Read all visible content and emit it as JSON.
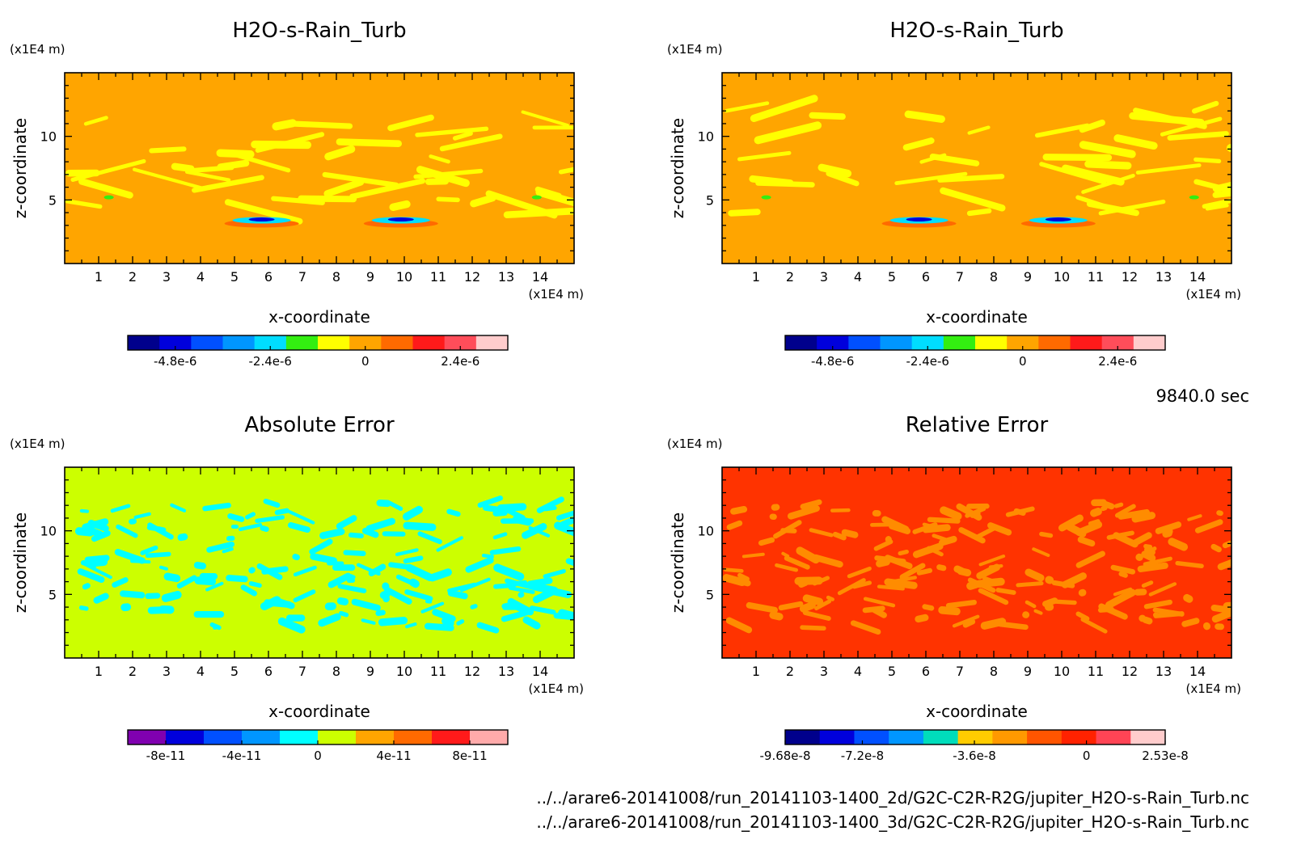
{
  "time_label": "9840.0 sec",
  "files": [
    "../../arare6-20141008/run_20141103-1400_2d/G2C-C2R-R2G/jupiter_H2O-s-Rain_Turb.nc",
    "../../arare6-20141008/run_20141103-1400_3d/G2C-C2R-R2G/jupiter_H2O-s-Rain_Turb.nc"
  ],
  "chart_data": [
    {
      "type": "heatmap",
      "title": "H2O-s-Rain_Turb",
      "xlabel": "x-coordinate",
      "ylabel": "z-coordinate",
      "x_unit": "(x1E4 m)",
      "y_unit": "(x1E4 m)",
      "xlim": [
        0,
        15
      ],
      "ylim": [
        0,
        15
      ],
      "x_ticks": [
        "1",
        "2",
        "3",
        "4",
        "5",
        "6",
        "7",
        "8",
        "9",
        "10",
        "11",
        "12",
        "13",
        "14"
      ],
      "y_ticks": [
        "5",
        "10"
      ],
      "background": "#ffa500",
      "pattern": "#ffff00",
      "pattern_kind": "bands",
      "colorbar": {
        "colors": [
          "#00008c",
          "#0000dc",
          "#0050ff",
          "#0096ff",
          "#00ddff",
          "#33ee11",
          "#ffff00",
          "#ffa500",
          "#ff6a00",
          "#ff1a1a",
          "#ff4d5a",
          "#ffcccc"
        ],
        "tick_labels": [
          "-4.8e-6",
          "-2.4e-6",
          "0",
          "2.4e-6"
        ],
        "tick_values": [
          -4.8e-06,
          -2.4e-06,
          0,
          2.4e-06
        ],
        "range": [
          -6e-06,
          3.6e-06
        ]
      }
    },
    {
      "type": "heatmap",
      "title": "H2O-s-Rain_Turb",
      "xlabel": "x-coordinate",
      "ylabel": "z-coordinate",
      "x_unit": "(x1E4 m)",
      "y_unit": "(x1E4 m)",
      "xlim": [
        0,
        15
      ],
      "ylim": [
        0,
        15
      ],
      "x_ticks": [
        "1",
        "2",
        "3",
        "4",
        "5",
        "6",
        "7",
        "8",
        "9",
        "10",
        "11",
        "12",
        "13",
        "14"
      ],
      "y_ticks": [
        "5",
        "10"
      ],
      "background": "#ffa500",
      "pattern": "#ffff00",
      "pattern_kind": "bands",
      "colorbar": {
        "colors": [
          "#00008c",
          "#0000dc",
          "#0050ff",
          "#0096ff",
          "#00ddff",
          "#33ee11",
          "#ffff00",
          "#ffa500",
          "#ff6a00",
          "#ff1a1a",
          "#ff4d5a",
          "#ffcccc"
        ],
        "tick_labels": [
          "-4.8e-6",
          "-2.4e-6",
          "0",
          "2.4e-6"
        ],
        "tick_values": [
          -4.8e-06,
          -2.4e-06,
          0,
          2.4e-06
        ],
        "range": [
          -6e-06,
          3.6e-06
        ]
      }
    },
    {
      "type": "heatmap",
      "title": "Absolute Error",
      "xlabel": "x-coordinate",
      "ylabel": "z-coordinate",
      "x_unit": "(x1E4 m)",
      "y_unit": "(x1E4 m)",
      "xlim": [
        0,
        15
      ],
      "ylim": [
        0,
        15
      ],
      "x_ticks": [
        "1",
        "2",
        "3",
        "4",
        "5",
        "6",
        "7",
        "8",
        "9",
        "10",
        "11",
        "12",
        "13",
        "14"
      ],
      "y_ticks": [
        "5",
        "10"
      ],
      "background": "#ccff00",
      "pattern": "#00ffff",
      "pattern_kind": "noise",
      "colorbar": {
        "colors": [
          "#8000b0",
          "#0000dc",
          "#0050ff",
          "#0096ff",
          "#00ffff",
          "#ccff00",
          "#ffa500",
          "#ff6a00",
          "#ff1a1a",
          "#ffaaaa"
        ],
        "tick_labels": [
          "-8e-11",
          "-4e-11",
          "0",
          "4e-11",
          "8e-11"
        ],
        "tick_values": [
          -8e-11,
          -4e-11,
          0,
          4e-11,
          8e-11
        ],
        "range": [
          -1e-10,
          1e-10
        ]
      }
    },
    {
      "type": "heatmap",
      "title": "Relative Error",
      "xlabel": "x-coordinate",
      "ylabel": "z-coordinate",
      "x_unit": "(x1E4 m)",
      "y_unit": "(x1E4 m)",
      "xlim": [
        0,
        15
      ],
      "ylim": [
        0,
        15
      ],
      "x_ticks": [
        "1",
        "2",
        "3",
        "4",
        "5",
        "6",
        "7",
        "8",
        "9",
        "10",
        "11",
        "12",
        "13",
        "14"
      ],
      "y_ticks": [
        "5",
        "10"
      ],
      "background": "#ff3300",
      "pattern": "#ff8c00",
      "pattern_kind": "noise",
      "colorbar": {
        "colors": [
          "#00008c",
          "#0000dc",
          "#0050ff",
          "#0096ff",
          "#00ddbb",
          "#ffcc00",
          "#ff9900",
          "#ff5500",
          "#ff2200",
          "#ff4455",
          "#ffcccc"
        ],
        "tick_labels": [
          "-9.68e-8",
          "-7.2e-8",
          "-3.6e-8",
          "0",
          "2.53e-8"
        ],
        "tick_values": [
          -9.68e-08,
          -7.2e-08,
          -3.6e-08,
          0,
          2.53e-08
        ],
        "range": [
          -9.68e-08,
          2.53e-08
        ]
      }
    }
  ]
}
